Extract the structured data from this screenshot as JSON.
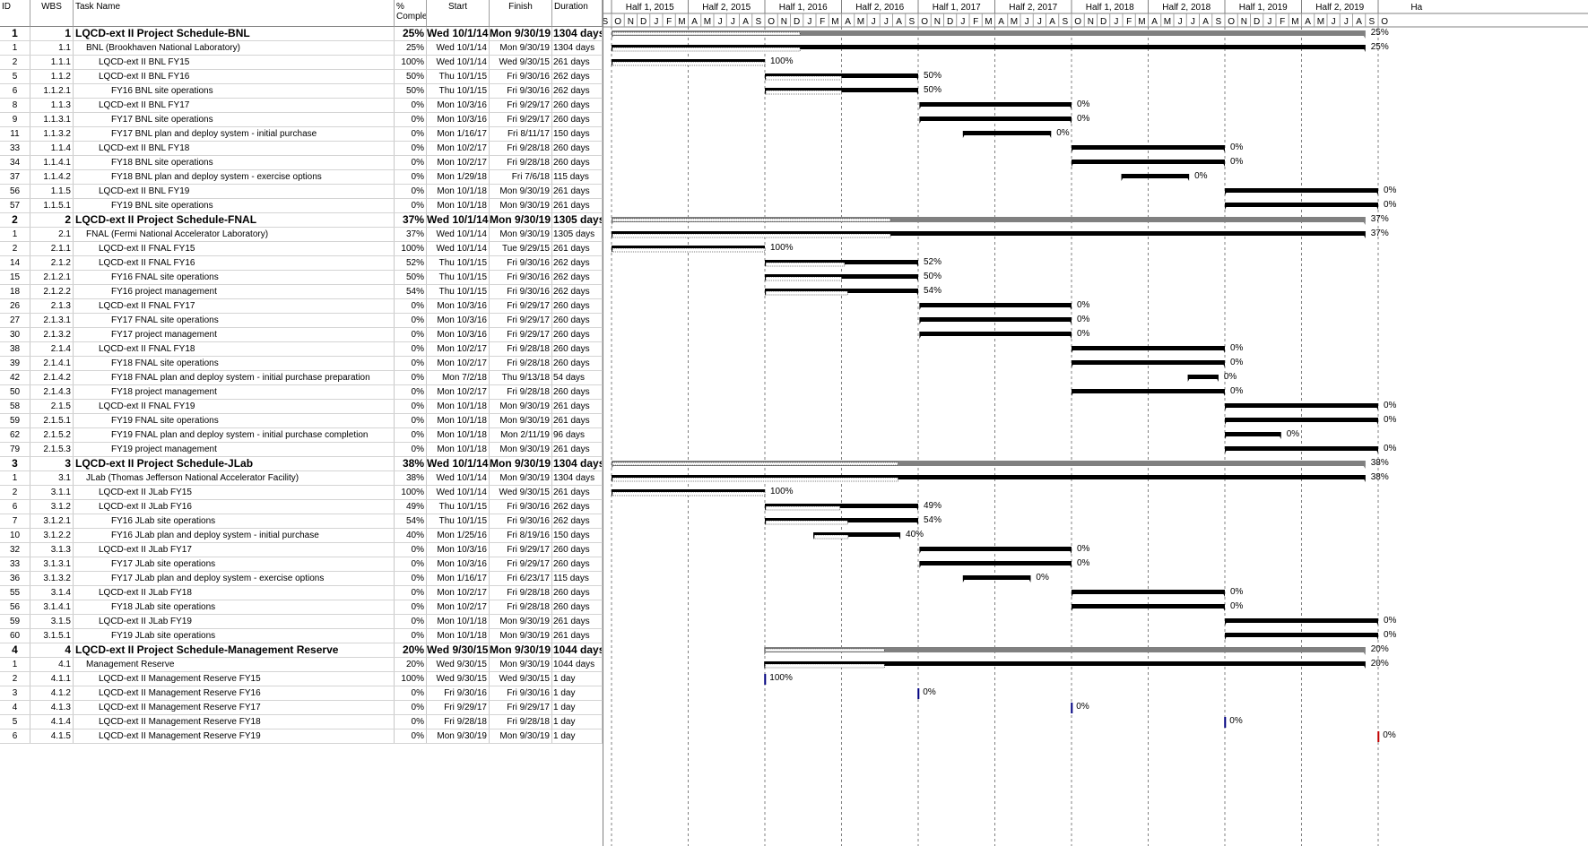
{
  "columns": {
    "id": "ID",
    "wbs": "WBS",
    "name": "Task Name",
    "pct": "% Comple",
    "start": "Start",
    "finish": "Finish",
    "duration": "Duration"
  },
  "timeline": {
    "halves": [
      "Half 1, 2015",
      "Half 2, 2015",
      "Half 1, 2016",
      "Half 2, 2016",
      "Half 1, 2017",
      "Half 2, 2017",
      "Half 1, 2018",
      "Half 2, 2018",
      "Half 1, 2019",
      "Half 2, 2019",
      "Ha"
    ],
    "months": [
      "S",
      "O",
      "N",
      "D",
      "J",
      "F",
      "M",
      "A",
      "M",
      "J",
      "J",
      "A",
      "S",
      "O",
      "N",
      "D",
      "J",
      "F",
      "M",
      "A",
      "M",
      "J",
      "J",
      "A",
      "S",
      "O",
      "N",
      "D",
      "J",
      "F",
      "M",
      "A",
      "M",
      "J",
      "J",
      "A",
      "S",
      "O",
      "N",
      "D",
      "J",
      "F",
      "M",
      "A",
      "M",
      "J",
      "J",
      "A",
      "S",
      "O",
      "N",
      "D",
      "J",
      "F",
      "M",
      "A",
      "M",
      "J",
      "J",
      "A",
      "S",
      "O"
    ]
  },
  "tasks": [
    {
      "id": "1",
      "wbs": "1",
      "name": "LQCD-ext II Project Schedule-BNL",
      "pct": "25%",
      "start": "Wed 10/1/14",
      "finish": "Mon 9/30/19",
      "dur": "1304 days",
      "level": 0,
      "summary": true,
      "s": 1,
      "f": 60,
      "p": 0.25,
      "label": "25%"
    },
    {
      "id": "1",
      "wbs": "1.1",
      "name": "BNL (Brookhaven National Laboratory)",
      "pct": "25%",
      "start": "Wed 10/1/14",
      "finish": "Mon 9/30/19",
      "dur": "1304 days",
      "level": 1,
      "s": 1,
      "f": 60,
      "p": 0.25,
      "label": "25%"
    },
    {
      "id": "2",
      "wbs": "1.1.1",
      "name": "LQCD-ext II BNL FY15",
      "pct": "100%",
      "start": "Wed 10/1/14",
      "finish": "Wed 9/30/15",
      "dur": "261 days",
      "level": 2,
      "s": 1,
      "f": 13,
      "p": 1,
      "label": "100%"
    },
    {
      "id": "5",
      "wbs": "1.1.2",
      "name": "LQCD-ext II BNL FY16",
      "pct": "50%",
      "start": "Thu 10/1/15",
      "finish": "Fri 9/30/16",
      "dur": "262 days",
      "level": 2,
      "s": 13,
      "f": 25,
      "p": 0.5,
      "label": "50%"
    },
    {
      "id": "6",
      "wbs": "1.1.2.1",
      "name": "FY16 BNL site operations",
      "pct": "50%",
      "start": "Thu 10/1/15",
      "finish": "Fri 9/30/16",
      "dur": "262 days",
      "level": 3,
      "s": 13,
      "f": 25,
      "p": 0.5,
      "label": "50%"
    },
    {
      "id": "8",
      "wbs": "1.1.3",
      "name": "LQCD-ext II BNL FY17",
      "pct": "0%",
      "start": "Mon 10/3/16",
      "finish": "Fri 9/29/17",
      "dur": "260 days",
      "level": 2,
      "s": 25.1,
      "f": 37,
      "p": 0,
      "label": "0%"
    },
    {
      "id": "9",
      "wbs": "1.1.3.1",
      "name": "FY17 BNL site operations",
      "pct": "0%",
      "start": "Mon 10/3/16",
      "finish": "Fri 9/29/17",
      "dur": "260 days",
      "level": 3,
      "s": 25.1,
      "f": 37,
      "p": 0,
      "label": "0%"
    },
    {
      "id": "11",
      "wbs": "1.1.3.2",
      "name": "FY17 BNL plan and deploy system - initial purchase",
      "pct": "0%",
      "start": "Mon 1/16/17",
      "finish": "Fri 8/11/17",
      "dur": "150 days",
      "level": 3,
      "s": 28.5,
      "f": 35.4,
      "p": 0,
      "label": "0%"
    },
    {
      "id": "33",
      "wbs": "1.1.4",
      "name": "LQCD-ext II BNL FY18",
      "pct": "0%",
      "start": "Mon 10/2/17",
      "finish": "Fri 9/28/18",
      "dur": "260 days",
      "level": 2,
      "s": 37,
      "f": 49,
      "p": 0,
      "label": "0%"
    },
    {
      "id": "34",
      "wbs": "1.1.4.1",
      "name": "FY18 BNL site operations",
      "pct": "0%",
      "start": "Mon 10/2/17",
      "finish": "Fri 9/28/18",
      "dur": "260 days",
      "level": 3,
      "s": 37,
      "f": 49,
      "p": 0,
      "label": "0%"
    },
    {
      "id": "37",
      "wbs": "1.1.4.2",
      "name": "FY18 BNL plan and deploy system - exercise options",
      "pct": "0%",
      "start": "Mon 1/29/18",
      "finish": "Fri 7/6/18",
      "dur": "115 days",
      "level": 3,
      "s": 40.9,
      "f": 46.2,
      "p": 0,
      "label": "0%"
    },
    {
      "id": "56",
      "wbs": "1.1.5",
      "name": "LQCD-ext II BNL FY19",
      "pct": "0%",
      "start": "Mon 10/1/18",
      "finish": "Mon 9/30/19",
      "dur": "261 days",
      "level": 2,
      "s": 49,
      "f": 61,
      "p": 0,
      "label": "0%"
    },
    {
      "id": "57",
      "wbs": "1.1.5.1",
      "name": "FY19 BNL site operations",
      "pct": "0%",
      "start": "Mon 10/1/18",
      "finish": "Mon 9/30/19",
      "dur": "261 days",
      "level": 3,
      "s": 49,
      "f": 61,
      "p": 0,
      "label": "0%"
    },
    {
      "id": "2",
      "wbs": "2",
      "name": "LQCD-ext II Project Schedule-FNAL",
      "pct": "37%",
      "start": "Wed 10/1/14",
      "finish": "Mon 9/30/19",
      "dur": "1305 days",
      "level": 0,
      "summary": true,
      "s": 1,
      "f": 60,
      "p": 0.37,
      "label": "37%"
    },
    {
      "id": "1",
      "wbs": "2.1",
      "name": "FNAL (Fermi National Accelerator Laboratory)",
      "pct": "37%",
      "start": "Wed 10/1/14",
      "finish": "Mon 9/30/19",
      "dur": "1305 days",
      "level": 1,
      "s": 1,
      "f": 60,
      "p": 0.37,
      "label": "37%"
    },
    {
      "id": "2",
      "wbs": "2.1.1",
      "name": "LQCD-ext II FNAL FY15",
      "pct": "100%",
      "start": "Wed 10/1/14",
      "finish": "Tue 9/29/15",
      "dur": "261 days",
      "level": 2,
      "s": 1,
      "f": 13,
      "p": 1,
      "label": "100%"
    },
    {
      "id": "14",
      "wbs": "2.1.2",
      "name": "LQCD-ext II FNAL FY16",
      "pct": "52%",
      "start": "Thu 10/1/15",
      "finish": "Fri 9/30/16",
      "dur": "262 days",
      "level": 2,
      "s": 13,
      "f": 25,
      "p": 0.52,
      "label": "52%"
    },
    {
      "id": "15",
      "wbs": "2.1.2.1",
      "name": "FY16 FNAL site operations",
      "pct": "50%",
      "start": "Thu 10/1/15",
      "finish": "Fri 9/30/16",
      "dur": "262 days",
      "level": 3,
      "s": 13,
      "f": 25,
      "p": 0.5,
      "label": "50%"
    },
    {
      "id": "18",
      "wbs": "2.1.2.2",
      "name": "FY16 project management",
      "pct": "54%",
      "start": "Thu 10/1/15",
      "finish": "Fri 9/30/16",
      "dur": "262 days",
      "level": 3,
      "s": 13,
      "f": 25,
      "p": 0.54,
      "label": "54%"
    },
    {
      "id": "26",
      "wbs": "2.1.3",
      "name": "LQCD-ext II FNAL FY17",
      "pct": "0%",
      "start": "Mon 10/3/16",
      "finish": "Fri 9/29/17",
      "dur": "260 days",
      "level": 2,
      "s": 25.1,
      "f": 37,
      "p": 0,
      "label": "0%"
    },
    {
      "id": "27",
      "wbs": "2.1.3.1",
      "name": "FY17 FNAL site operations",
      "pct": "0%",
      "start": "Mon 10/3/16",
      "finish": "Fri 9/29/17",
      "dur": "260 days",
      "level": 3,
      "s": 25.1,
      "f": 37,
      "p": 0,
      "label": "0%"
    },
    {
      "id": "30",
      "wbs": "2.1.3.2",
      "name": "FY17 project management",
      "pct": "0%",
      "start": "Mon 10/3/16",
      "finish": "Fri 9/29/17",
      "dur": "260 days",
      "level": 3,
      "s": 25.1,
      "f": 37,
      "p": 0,
      "label": "0%"
    },
    {
      "id": "38",
      "wbs": "2.1.4",
      "name": "LQCD-ext II FNAL FY18",
      "pct": "0%",
      "start": "Mon 10/2/17",
      "finish": "Fri 9/28/18",
      "dur": "260 days",
      "level": 2,
      "s": 37,
      "f": 49,
      "p": 0,
      "label": "0%"
    },
    {
      "id": "39",
      "wbs": "2.1.4.1",
      "name": "FY18 FNAL site operations",
      "pct": "0%",
      "start": "Mon 10/2/17",
      "finish": "Fri 9/28/18",
      "dur": "260 days",
      "level": 3,
      "s": 37,
      "f": 49,
      "p": 0,
      "label": "0%"
    },
    {
      "id": "42",
      "wbs": "2.1.4.2",
      "name": "FY18 FNAL plan and deploy system - initial purchase preparation",
      "pct": "0%",
      "start": "Mon 7/2/18",
      "finish": "Thu 9/13/18",
      "dur": "54 days",
      "level": 3,
      "s": 46.1,
      "f": 48.5,
      "p": 0,
      "label": "0%"
    },
    {
      "id": "50",
      "wbs": "2.1.4.3",
      "name": "FY18 project management",
      "pct": "0%",
      "start": "Mon 10/2/17",
      "finish": "Fri 9/28/18",
      "dur": "260 days",
      "level": 3,
      "s": 37,
      "f": 49,
      "p": 0,
      "label": "0%"
    },
    {
      "id": "58",
      "wbs": "2.1.5",
      "name": "LQCD-ext II FNAL FY19",
      "pct": "0%",
      "start": "Mon 10/1/18",
      "finish": "Mon 9/30/19",
      "dur": "261 days",
      "level": 2,
      "s": 49,
      "f": 61,
      "p": 0,
      "label": "0%"
    },
    {
      "id": "59",
      "wbs": "2.1.5.1",
      "name": "FY19 FNAL site operations",
      "pct": "0%",
      "start": "Mon 10/1/18",
      "finish": "Mon 9/30/19",
      "dur": "261 days",
      "level": 3,
      "s": 49,
      "f": 61,
      "p": 0,
      "label": "0%"
    },
    {
      "id": "62",
      "wbs": "2.1.5.2",
      "name": "FY19 FNAL plan and deploy system - initial purchase completion",
      "pct": "0%",
      "start": "Mon 10/1/18",
      "finish": "Mon 2/11/19",
      "dur": "96 days",
      "level": 3,
      "s": 49,
      "f": 53.4,
      "p": 0,
      "label": "0%"
    },
    {
      "id": "79",
      "wbs": "2.1.5.3",
      "name": "FY19 project management",
      "pct": "0%",
      "start": "Mon 10/1/18",
      "finish": "Mon 9/30/19",
      "dur": "261 days",
      "level": 3,
      "s": 49,
      "f": 61,
      "p": 0,
      "label": "0%"
    },
    {
      "id": "3",
      "wbs": "3",
      "name": "LQCD-ext II Project Schedule-JLab",
      "pct": "38%",
      "start": "Wed 10/1/14",
      "finish": "Mon 9/30/19",
      "dur": "1304 days",
      "level": 0,
      "summary": true,
      "s": 1,
      "f": 60,
      "p": 0.38,
      "label": "38%"
    },
    {
      "id": "1",
      "wbs": "3.1",
      "name": "JLab (Thomas Jefferson National Accelerator Facility)",
      "pct": "38%",
      "start": "Wed 10/1/14",
      "finish": "Mon 9/30/19",
      "dur": "1304 days",
      "level": 1,
      "s": 1,
      "f": 60,
      "p": 0.38,
      "label": "38%"
    },
    {
      "id": "2",
      "wbs": "3.1.1",
      "name": "LQCD-ext II JLab FY15",
      "pct": "100%",
      "start": "Wed 10/1/14",
      "finish": "Wed 9/30/15",
      "dur": "261 days",
      "level": 2,
      "s": 1,
      "f": 13,
      "p": 1,
      "label": "100%"
    },
    {
      "id": "6",
      "wbs": "3.1.2",
      "name": "LQCD-ext II JLab FY16",
      "pct": "49%",
      "start": "Thu 10/1/15",
      "finish": "Fri 9/30/16",
      "dur": "262 days",
      "level": 2,
      "s": 13,
      "f": 25,
      "p": 0.49,
      "label": "49%"
    },
    {
      "id": "7",
      "wbs": "3.1.2.1",
      "name": "FY16 JLab site operations",
      "pct": "54%",
      "start": "Thu 10/1/15",
      "finish": "Fri 9/30/16",
      "dur": "262 days",
      "level": 3,
      "s": 13,
      "f": 25,
      "p": 0.54,
      "label": "54%"
    },
    {
      "id": "10",
      "wbs": "3.1.2.2",
      "name": "FY16 JLab plan and deploy system - initial purchase",
      "pct": "40%",
      "start": "Mon 1/25/16",
      "finish": "Fri 8/19/16",
      "dur": "150 days",
      "level": 3,
      "s": 16.8,
      "f": 23.6,
      "p": 0.4,
      "label": "40%"
    },
    {
      "id": "32",
      "wbs": "3.1.3",
      "name": "LQCD-ext II JLab FY17",
      "pct": "0%",
      "start": "Mon 10/3/16",
      "finish": "Fri 9/29/17",
      "dur": "260 days",
      "level": 2,
      "s": 25.1,
      "f": 37,
      "p": 0,
      "label": "0%"
    },
    {
      "id": "33",
      "wbs": "3.1.3.1",
      "name": "FY17 JLab site operations",
      "pct": "0%",
      "start": "Mon 10/3/16",
      "finish": "Fri 9/29/17",
      "dur": "260 days",
      "level": 3,
      "s": 25.1,
      "f": 37,
      "p": 0,
      "label": "0%"
    },
    {
      "id": "36",
      "wbs": "3.1.3.2",
      "name": "FY17 JLab plan and deploy system - exercise options",
      "pct": "0%",
      "start": "Mon 1/16/17",
      "finish": "Fri 6/23/17",
      "dur": "115 days",
      "level": 3,
      "s": 28.5,
      "f": 33.8,
      "p": 0,
      "label": "0%"
    },
    {
      "id": "55",
      "wbs": "3.1.4",
      "name": "LQCD-ext II JLab FY18",
      "pct": "0%",
      "start": "Mon 10/2/17",
      "finish": "Fri 9/28/18",
      "dur": "260 days",
      "level": 2,
      "s": 37,
      "f": 49,
      "p": 0,
      "label": "0%"
    },
    {
      "id": "56",
      "wbs": "3.1.4.1",
      "name": "FY18 JLab site operations",
      "pct": "0%",
      "start": "Mon 10/2/17",
      "finish": "Fri 9/28/18",
      "dur": "260 days",
      "level": 3,
      "s": 37,
      "f": 49,
      "p": 0,
      "label": "0%"
    },
    {
      "id": "59",
      "wbs": "3.1.5",
      "name": "LQCD-ext II JLab FY19",
      "pct": "0%",
      "start": "Mon 10/1/18",
      "finish": "Mon 9/30/19",
      "dur": "261 days",
      "level": 2,
      "s": 49,
      "f": 61,
      "p": 0,
      "label": "0%"
    },
    {
      "id": "60",
      "wbs": "3.1.5.1",
      "name": "FY19 JLab site operations",
      "pct": "0%",
      "start": "Mon 10/1/18",
      "finish": "Mon 9/30/19",
      "dur": "261 days",
      "level": 3,
      "s": 49,
      "f": 61,
      "p": 0,
      "label": "0%"
    },
    {
      "id": "4",
      "wbs": "4",
      "name": "LQCD-ext II Project Schedule-Management Reserve",
      "pct": "20%",
      "start": "Wed 9/30/15",
      "finish": "Mon 9/30/19",
      "dur": "1044 days",
      "level": 0,
      "summary": true,
      "s": 12.95,
      "f": 60,
      "p": 0.2,
      "label": "20%"
    },
    {
      "id": "1",
      "wbs": "4.1",
      "name": "Management Reserve",
      "pct": "20%",
      "start": "Wed 9/30/15",
      "finish": "Mon 9/30/19",
      "dur": "1044 days",
      "level": 1,
      "s": 12.95,
      "f": 60,
      "p": 0.2,
      "label": "20%"
    },
    {
      "id": "2",
      "wbs": "4.1.1",
      "name": "LQCD-ext II Management Reserve FY15",
      "pct": "100%",
      "start": "Wed 9/30/15",
      "finish": "Wed 9/30/15",
      "dur": "1 day",
      "level": 2,
      "s": 12.95,
      "f": 12.95,
      "p": 1,
      "label": "100%",
      "milestone": true
    },
    {
      "id": "3",
      "wbs": "4.1.2",
      "name": "LQCD-ext II Management Reserve FY16",
      "pct": "0%",
      "start": "Fri 9/30/16",
      "finish": "Fri 9/30/16",
      "dur": "1 day",
      "level": 2,
      "s": 24.95,
      "f": 24.95,
      "p": 0,
      "label": "0%",
      "milestone": true
    },
    {
      "id": "4",
      "wbs": "4.1.3",
      "name": "LQCD-ext II Management Reserve FY17",
      "pct": "0%",
      "start": "Fri 9/29/17",
      "finish": "Fri 9/29/17",
      "dur": "1 day",
      "level": 2,
      "s": 36.95,
      "f": 36.95,
      "p": 0,
      "label": "0%",
      "milestone": true
    },
    {
      "id": "5",
      "wbs": "4.1.4",
      "name": "LQCD-ext II Management Reserve FY18",
      "pct": "0%",
      "start": "Fri 9/28/18",
      "finish": "Fri 9/28/18",
      "dur": "1 day",
      "level": 2,
      "s": 48.95,
      "f": 48.95,
      "p": 0,
      "label": "0%",
      "milestone": true
    },
    {
      "id": "6",
      "wbs": "4.1.5",
      "name": "LQCD-ext II Management Reserve FY19",
      "pct": "0%",
      "start": "Mon 9/30/19",
      "finish": "Mon 9/30/19",
      "dur": "1 day",
      "level": 2,
      "s": 60.95,
      "f": 60.95,
      "p": 0,
      "label": "0%",
      "milestone": true,
      "milestoneColor": "#c00000"
    }
  ],
  "colors": {
    "bar": "#000000",
    "summary": "#808080",
    "progress": "#ffffff",
    "milestone": "#000080"
  }
}
